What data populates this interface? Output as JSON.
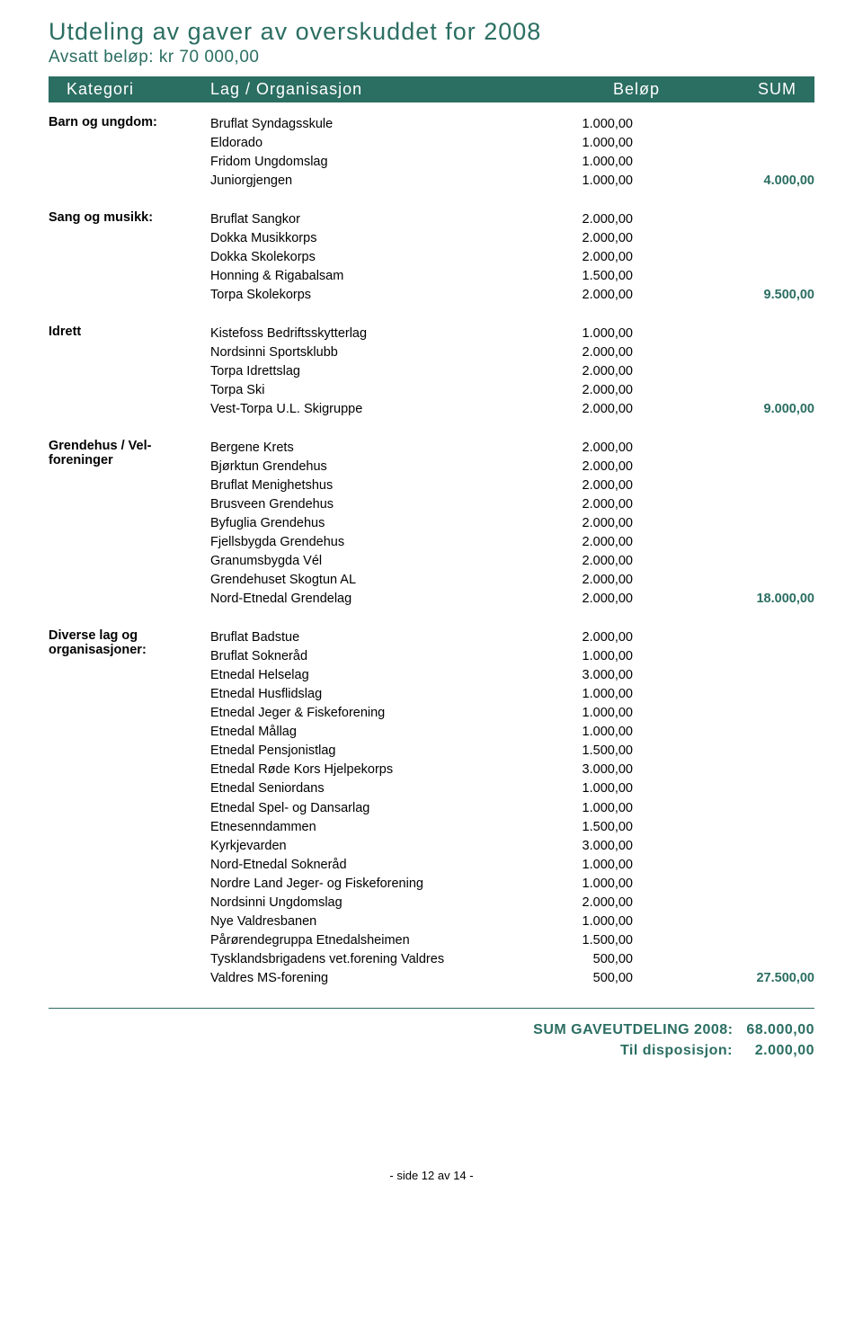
{
  "title": "Utdeling av gaver av overskuddet for 2008",
  "subtitle": "Avsatt beløp: kr 70 000,00",
  "colors": {
    "teal": "#2b6e62",
    "background": "#ffffff",
    "text": "#000000"
  },
  "header": {
    "col1": "Kategori",
    "col2": "Lag / Organisasjon",
    "col3": "Beløp",
    "col4": "SUM"
  },
  "sections": [
    {
      "category": "Barn og ungdom:",
      "items": [
        {
          "name": "Bruflat Syndagsskule",
          "amount": "1.000,00"
        },
        {
          "name": "Eldorado",
          "amount": "1.000,00"
        },
        {
          "name": "Fridom Ungdomslag",
          "amount": "1.000,00"
        },
        {
          "name": "Juniorgjengen",
          "amount": "1.000,00"
        }
      ],
      "sum": "4.000,00"
    },
    {
      "category": "Sang og musikk:",
      "items": [
        {
          "name": "Bruflat Sangkor",
          "amount": "2.000,00"
        },
        {
          "name": "Dokka Musikkorps",
          "amount": "2.000,00"
        },
        {
          "name": "Dokka Skolekorps",
          "amount": "2.000,00"
        },
        {
          "name": "Honning & Rigabalsam",
          "amount": "1.500,00"
        },
        {
          "name": "Torpa Skolekorps",
          "amount": "2.000,00"
        }
      ],
      "sum": "9.500,00"
    },
    {
      "category": "Idrett",
      "items": [
        {
          "name": "Kistefoss Bedriftsskytterlag",
          "amount": "1.000,00"
        },
        {
          "name": "Nordsinni Sportsklubb",
          "amount": "2.000,00"
        },
        {
          "name": "Torpa Idrettslag",
          "amount": "2.000,00"
        },
        {
          "name": "Torpa Ski",
          "amount": "2.000,00"
        },
        {
          "name": "Vest-Torpa U.L. Skigruppe",
          "amount": "2.000,00"
        }
      ],
      "sum": "9.000,00"
    },
    {
      "category": "Grendehus / Vel-foreninger",
      "items": [
        {
          "name": "Bergene Krets",
          "amount": "2.000,00"
        },
        {
          "name": "Bjørktun Grendehus",
          "amount": "2.000,00"
        },
        {
          "name": "Bruflat Menighetshus",
          "amount": "2.000,00"
        },
        {
          "name": "Brusveen Grendehus",
          "amount": "2.000,00"
        },
        {
          "name": "Byfuglia Grendehus",
          "amount": "2.000,00"
        },
        {
          "name": "Fjellsbygda Grendehus",
          "amount": "2.000,00"
        },
        {
          "name": "Granumsbygda Vél",
          "amount": "2.000,00"
        },
        {
          "name": "Grendehuset Skogtun AL",
          "amount": "2.000,00"
        },
        {
          "name": "Nord-Etnedal Grendelag",
          "amount": "2.000,00"
        }
      ],
      "sum": "18.000,00"
    },
    {
      "category": "Diverse lag og organisasjoner:",
      "items": [
        {
          "name": "Bruflat Badstue",
          "amount": "2.000,00"
        },
        {
          "name": "Bruflat Sokneråd",
          "amount": "1.000,00"
        },
        {
          "name": "Etnedal Helselag",
          "amount": "3.000,00"
        },
        {
          "name": "Etnedal Husflidslag",
          "amount": "1.000,00"
        },
        {
          "name": "Etnedal Jeger & Fiskeforening",
          "amount": "1.000,00"
        },
        {
          "name": "Etnedal Mållag",
          "amount": "1.000,00"
        },
        {
          "name": "Etnedal Pensjonistlag",
          "amount": "1.500,00"
        },
        {
          "name": "Etnedal Røde Kors Hjelpekorps",
          "amount": "3.000,00"
        },
        {
          "name": "Etnedal Seniordans",
          "amount": "1.000,00"
        },
        {
          "name": "Etnedal Spel- og Dansarlag",
          "amount": "1.000,00"
        },
        {
          "name": "Etnesenndammen",
          "amount": "1.500,00"
        },
        {
          "name": "Kyrkjevarden",
          "amount": "3.000,00"
        },
        {
          "name": "Nord-Etnedal Sokneråd",
          "amount": "1.000,00"
        },
        {
          "name": "Nordre Land Jeger- og Fiskeforening",
          "amount": "1.000,00"
        },
        {
          "name": "Nordsinni Ungdomslag",
          "amount": "2.000,00"
        },
        {
          "name": "Nye Valdresbanen",
          "amount": "1.000,00"
        },
        {
          "name": "Pårørendegruppa Etnedalsheimen",
          "amount": "1.500,00"
        },
        {
          "name": "Tysklandsbrigadens vet.forening Valdres",
          "amount": "500,00"
        },
        {
          "name": "Valdres MS-forening",
          "amount": "500,00"
        }
      ],
      "sum": "27.500,00"
    }
  ],
  "totals": {
    "line1_label": "SUM GAVEUTDELING 2008:",
    "line1_value": "68.000,00",
    "line2_label": "Til disposisjon:",
    "line2_value": "2.000,00"
  },
  "footer": "- side 12  av 14 -"
}
